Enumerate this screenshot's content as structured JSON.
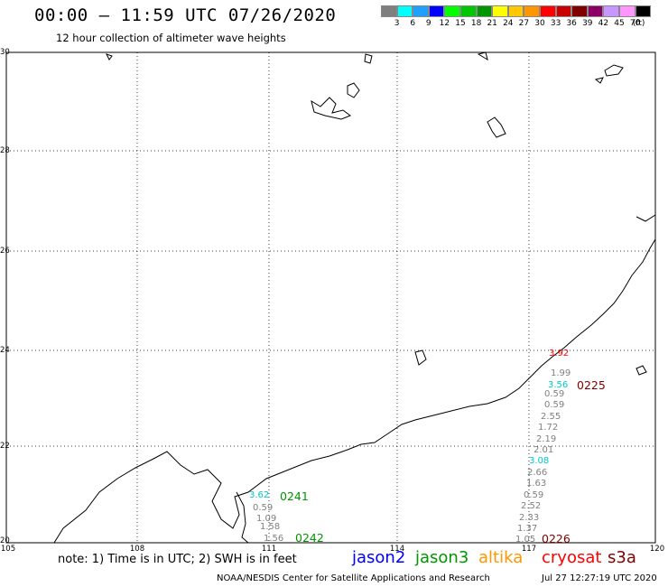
{
  "header": {
    "title": "00:00 – 11:59 UTC 07/26/2020",
    "subtitle": "12 hour collection of altimeter wave heights"
  },
  "colorbar": {
    "colors": [
      "#7f7f7f",
      "#00ffff",
      "#1ea0ff",
      "#0000ff",
      "#00ff00",
      "#00c800",
      "#009600",
      "#ffff00",
      "#ffc800",
      "#ff9600",
      "#ff0000",
      "#c80000",
      "#800000",
      "#8c0064",
      "#c896ff",
      "#ff96ff",
      "#000000"
    ],
    "labels": [
      "3",
      "6",
      "9",
      "12",
      "15",
      "18",
      "21",
      "24",
      "27",
      "30",
      "33",
      "36",
      "39",
      "42",
      "45",
      "70",
      "(ft)"
    ]
  },
  "map": {
    "lat_labels": [
      "30",
      "28",
      "26",
      "24",
      "22",
      "20"
    ],
    "lon_labels": [
      "105",
      "108",
      "111",
      "114",
      "117",
      "120"
    ]
  },
  "observations": [
    {
      "text": "3.92",
      "color": "#ff0000"
    },
    {
      "text": "1.99",
      "color": "#808080"
    },
    {
      "text": "3.56",
      "color": "#00c8c8"
    },
    {
      "text": "0.59",
      "color": "#808080"
    },
    {
      "text": "0.59",
      "color": "#808080"
    },
    {
      "text": "2.55",
      "color": "#808080"
    },
    {
      "text": "1.72",
      "color": "#808080"
    },
    {
      "text": "2.19",
      "color": "#808080"
    },
    {
      "text": "2.01",
      "color": "#808080"
    },
    {
      "text": "3.08",
      "color": "#00c8c8"
    },
    {
      "text": "2.66",
      "color": "#808080"
    },
    {
      "text": "1.63",
      "color": "#808080"
    },
    {
      "text": "0.59",
      "color": "#808080"
    },
    {
      "text": "2.52",
      "color": "#808080"
    },
    {
      "text": "2.33",
      "color": "#808080"
    },
    {
      "text": "1.37",
      "color": "#808080"
    },
    {
      "text": "1.05",
      "color": "#808080"
    },
    {
      "text": "3.62",
      "color": "#00c8c8"
    },
    {
      "text": "0.59",
      "color": "#808080"
    },
    {
      "text": "1.09",
      "color": "#808080"
    },
    {
      "text": "1.58",
      "color": "#808080"
    },
    {
      "text": "1.56",
      "color": "#808080"
    }
  ],
  "passes": [
    {
      "text": "0225",
      "color": "#800000"
    },
    {
      "text": "0226",
      "color": "#800000"
    },
    {
      "text": "0241",
      "color": "#009600"
    },
    {
      "text": "0242",
      "color": "#009600"
    }
  ],
  "footer": {
    "note": "note: 1) Time is in UTC; 2) SWH is in feet",
    "legend": [
      {
        "text": "jason2",
        "color": "#0000ff"
      },
      {
        "text": "jason3",
        "color": "#009600"
      },
      {
        "text": "altika",
        "color": "#ff9600"
      },
      {
        "text": "cryosat",
        "color": "#ff0000"
      },
      {
        "text": "s3a",
        "color": "#800000"
      }
    ],
    "credit": "NOAA/NESDIS Center for Satellite Applications and Research",
    "timestamp": "Jul 27 12:27:19 UTC 2020"
  }
}
